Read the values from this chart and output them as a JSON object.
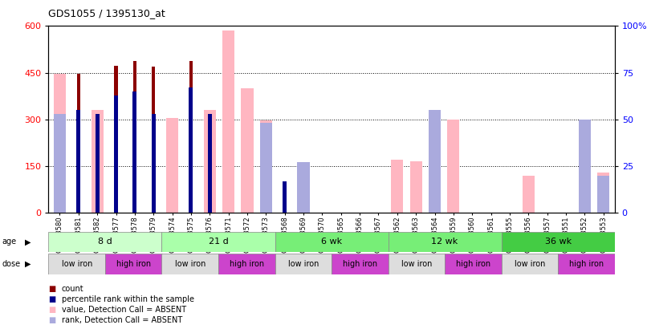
{
  "title": "GDS1055 / 1395130_at",
  "samples": [
    "GSM33580",
    "GSM33581",
    "GSM33582",
    "GSM33577",
    "GSM33578",
    "GSM33579",
    "GSM33574",
    "GSM33575",
    "GSM33576",
    "GSM33571",
    "GSM33572",
    "GSM33573",
    "GSM33568",
    "GSM33569",
    "GSM33570",
    "GSM33565",
    "GSM33566",
    "GSM33567",
    "GSM33562",
    "GSM33563",
    "GSM33564",
    "GSM33559",
    "GSM33560",
    "GSM33561",
    "GSM33555",
    "GSM33556",
    "GSM33557",
    "GSM33551",
    "GSM33552",
    "GSM33553"
  ],
  "pink_values": [
    447,
    0,
    330,
    0,
    0,
    0,
    305,
    0,
    330,
    585,
    400,
    298,
    0,
    125,
    0,
    0,
    0,
    0,
    170,
    165,
    0,
    300,
    0,
    0,
    0,
    120,
    0,
    0,
    300,
    130
  ],
  "red_values": [
    0,
    447,
    0,
    473,
    488,
    470,
    0,
    487,
    0,
    0,
    0,
    0,
    0,
    0,
    0,
    0,
    0,
    0,
    0,
    0,
    0,
    0,
    0,
    0,
    0,
    0,
    0,
    0,
    0,
    0
  ],
  "darkblue_pct": [
    0,
    55,
    53,
    63,
    65,
    53,
    0,
    67,
    53,
    0,
    0,
    0,
    17,
    0,
    0,
    0,
    0,
    0,
    0,
    0,
    0,
    0,
    0,
    0,
    0,
    0,
    0,
    0,
    0,
    0
  ],
  "lightblue_pct": [
    53,
    0,
    0,
    0,
    0,
    0,
    0,
    0,
    0,
    0,
    0,
    48,
    0,
    27,
    0,
    0,
    0,
    0,
    0,
    0,
    55,
    0,
    0,
    0,
    0,
    0,
    0,
    0,
    50,
    20
  ],
  "ylim_left": [
    0,
    600
  ],
  "ylim_right": [
    0,
    100
  ],
  "yticks_left": [
    0,
    150,
    300,
    450,
    600
  ],
  "yticks_right": [
    0,
    25,
    50,
    75,
    100
  ],
  "color_red": "#8B0000",
  "color_pink": "#FFB6C1",
  "color_darkblue": "#00008B",
  "color_lightblue": "#AAAADD",
  "age_groups": [
    {
      "label": "8 d",
      "start": 0,
      "end": 6,
      "color": "#ccffcc"
    },
    {
      "label": "21 d",
      "start": 6,
      "end": 12,
      "color": "#aaeea a"
    },
    {
      "label": "6 wk",
      "start": 12,
      "end": 18,
      "color": "#77ee77"
    },
    {
      "label": "12 wk",
      "start": 18,
      "end": 24,
      "color": "#77ee77"
    },
    {
      "label": "36 wk",
      "start": 24,
      "end": 30,
      "color": "#44cc44"
    }
  ],
  "dose_groups": [
    {
      "label": "low iron",
      "start": 0,
      "end": 3,
      "color": "#dddddd"
    },
    {
      "label": "high iron",
      "start": 3,
      "end": 6,
      "color": "#cc44cc"
    },
    {
      "label": "low iron",
      "start": 6,
      "end": 9,
      "color": "#dddddd"
    },
    {
      "label": "high iron",
      "start": 9,
      "end": 12,
      "color": "#cc44cc"
    },
    {
      "label": "low iron",
      "start": 12,
      "end": 15,
      "color": "#dddddd"
    },
    {
      "label": "high iron",
      "start": 15,
      "end": 18,
      "color": "#cc44cc"
    },
    {
      "label": "low iron",
      "start": 18,
      "end": 21,
      "color": "#dddddd"
    },
    {
      "label": "high iron",
      "start": 21,
      "end": 24,
      "color": "#cc44cc"
    },
    {
      "label": "low iron",
      "start": 24,
      "end": 27,
      "color": "#dddddd"
    },
    {
      "label": "high iron",
      "start": 27,
      "end": 30,
      "color": "#cc44cc"
    }
  ]
}
